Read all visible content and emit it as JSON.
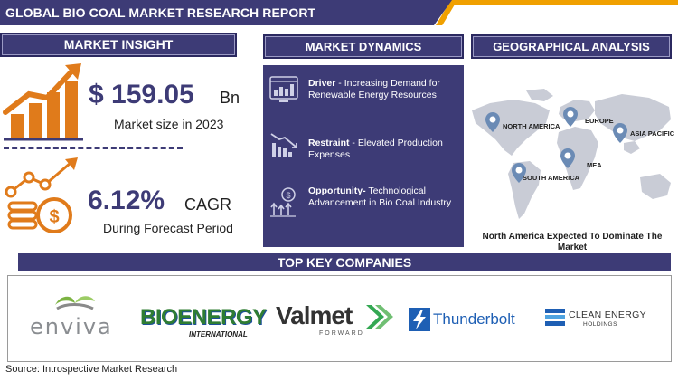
{
  "header": {
    "title": "GLOBAL BIO COAL MARKET RESEARCH REPORT"
  },
  "market_insight": {
    "heading": "MARKET INSIGHT",
    "market_size_value": "$ 159.05",
    "market_size_unit": "Bn",
    "market_size_label": "Market size in 2023",
    "cagr_value": "6.12%",
    "cagr_unit": "CAGR",
    "cagr_label": "During Forecast Period"
  },
  "market_dynamics": {
    "heading": "MARKET DYNAMICS",
    "items": [
      {
        "label": "Driver",
        "separator": " - ",
        "text": "Increasing Demand for Renewable Energy Resources",
        "icon": "monitor-chart-icon"
      },
      {
        "label": "Restraint",
        "separator": " - ",
        "text": "Elevated Production Expenses",
        "icon": "declining-bars-icon"
      },
      {
        "label": "Opportunity-",
        "separator": " ",
        "text": "Technological Advancement in Bio Coal Industry",
        "icon": "growth-coin-icon"
      }
    ]
  },
  "geographical_analysis": {
    "heading": "GEOGRAPHICAL ANALYSIS",
    "regions": [
      "NORTH AMERICA",
      "EUROPE",
      "ASIA PACIFIC",
      "MEA",
      "SOUTH AMERICA"
    ],
    "caption": "North America Expected To Dominate The Market"
  },
  "companies": {
    "heading": "TOP KEY COMPANIES",
    "logos": [
      {
        "name": "enviva"
      },
      {
        "name": "BIOENERGY",
        "sub": "INTERNATIONAL"
      },
      {
        "name": "Valmet",
        "sub": "FORWARD"
      },
      {
        "name": "Thunderbolt"
      },
      {
        "name": "CLEAN ENERGY",
        "sub": "HOLDINGS"
      }
    ]
  },
  "source": "Source: Introspective Market Research",
  "colors": {
    "navy": "#3d3b76",
    "orange": "#f0a000",
    "map_gray": "#c9ccd6",
    "pin_blue": "#6b8bb5"
  }
}
